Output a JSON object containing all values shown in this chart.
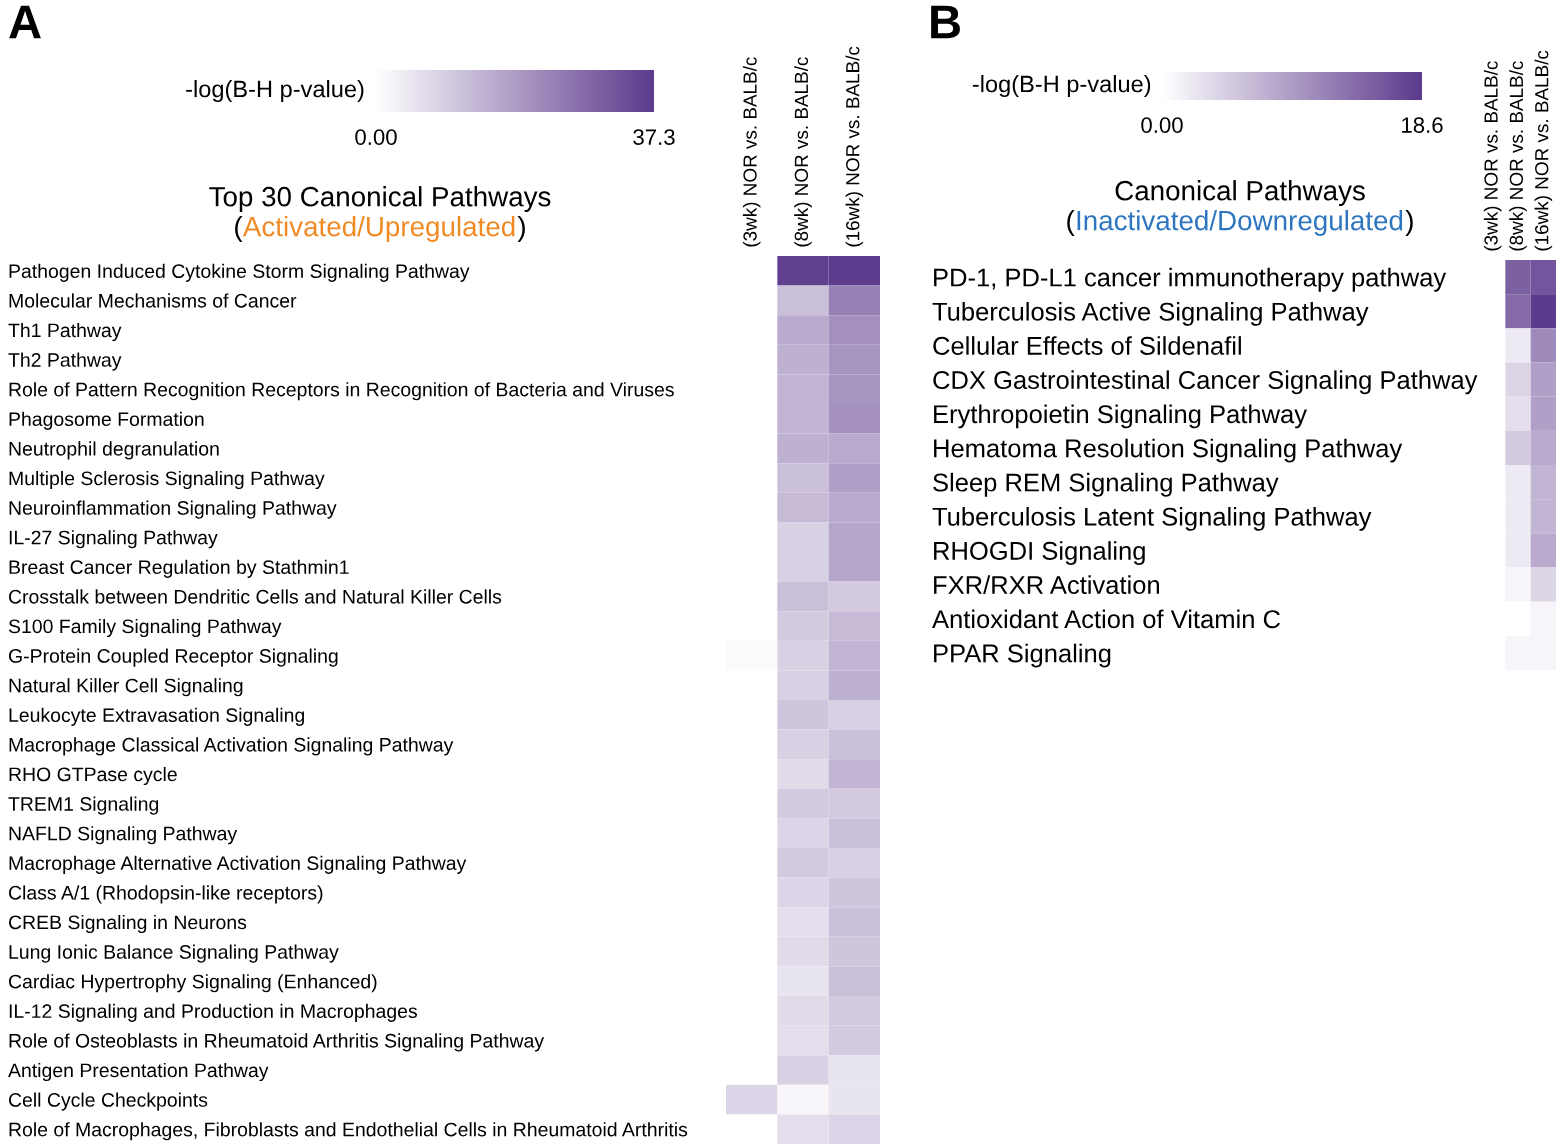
{
  "chart_data": [
    {
      "type": "heatmap",
      "title": "Top 30 Canonical Pathways",
      "subtitle": "(Activated/Upregulated)",
      "clabel": "-log(B-H p-value)",
      "annotations": [
        "A"
      ],
      "categories": [
        "(3wk) NOR vs. BALB/c",
        "(8wk) NOR vs. BALB/c",
        "(16wk) NOR vs. BALB/c"
      ],
      "y_categories": [
        "Pathogen Induced Cytokine Storm Signaling Pathway",
        "Molecular Mechanisms of Cancer",
        "Th1 Pathway",
        "Th2 Pathway",
        "Role of Pattern Recognition Receptors in Recognition of Bacteria and Viruses",
        "Phagosome Formation",
        "Neutrophil degranulation",
        "Multiple Sclerosis Signaling Pathway",
        "Neuroinflammation Signaling Pathway",
        "IL-27 Signaling Pathway",
        "Breast Cancer Regulation by Stathmin1",
        "Crosstalk between Dendritic Cells and Natural Killer Cells",
        "S100 Family Signaling Pathway",
        "G-Protein Coupled Receptor Signaling",
        "Natural Killer Cell Signaling",
        "Leukocyte Extravasation Signaling",
        "Macrophage Classical Activation Signaling Pathway",
        "RHO GTPase cycle",
        "TREM1 Signaling",
        "NAFLD Signaling Pathway",
        "Macrophage Alternative Activation Signaling Pathway",
        "Class A/1 (Rhodopsin-like receptors)",
        "CREB Signaling in Neurons",
        "Lung Ionic Balance Signaling Pathway",
        "Cardiac Hypertrophy Signaling (Enhanced)",
        "IL-12 Signaling and Production in Macrophages",
        "Role of Osteoblasts in Rheumatoid Arthritis Signaling Pathway",
        "Antigen Presentation Pathway",
        "Cell Cycle Checkpoints",
        "Role of Macrophages, Fibroblasts and Endothelial Cells in Rheumatoid Arthritis"
      ],
      "cells": [
        [
          0,
          36,
          37
        ],
        [
          0,
          12,
          24
        ],
        [
          0,
          16,
          21
        ],
        [
          0,
          15,
          20
        ],
        [
          0,
          14,
          20
        ],
        [
          0,
          14,
          21
        ],
        [
          0,
          15,
          16
        ],
        [
          0,
          12,
          18
        ],
        [
          0,
          13,
          16
        ],
        [
          0,
          9,
          17
        ],
        [
          0,
          9,
          17
        ],
        [
          0,
          12,
          10
        ],
        [
          0,
          10,
          13
        ],
        [
          1,
          9,
          14
        ],
        [
          0,
          9,
          15
        ],
        [
          0,
          11,
          9
        ],
        [
          0,
          9,
          12
        ],
        [
          0,
          7,
          14
        ],
        [
          0,
          10,
          10
        ],
        [
          0,
          8,
          12
        ],
        [
          0,
          10,
          9
        ],
        [
          0,
          8,
          11
        ],
        [
          0,
          6,
          12
        ],
        [
          0,
          7,
          11
        ],
        [
          0,
          5,
          12
        ],
        [
          0,
          7,
          10
        ],
        [
          0,
          6,
          10
        ],
        [
          0,
          9,
          5
        ],
        [
          8,
          2,
          5
        ],
        [
          0,
          6,
          8
        ]
      ],
      "clim": [
        0,
        37.3
      ],
      "cticks": [
        {
          "value": 0,
          "label": "0.00"
        },
        37.3
      ]
    },
    {
      "type": "heatmap",
      "title": "Canonical Pathways",
      "subtitle": "(Inactivated/Downregulated)",
      "clabel": "-log(B-H p-value)",
      "annotations": [
        "B"
      ],
      "categories": [
        "(3wk) NOR vs. BALB/c",
        "(8wk) NOR vs. BALB/c",
        "(16wk) NOR vs. BALB/c"
      ],
      "y_categories": [
        "PD-1, PD-L1 cancer immunotherapy pathway",
        "Tuberculosis Active Signaling Pathway",
        "Cellular Effects of Sildenafil",
        "CDX Gastrointestinal Cancer Signaling Pathway",
        "Erythropoietin Signaling Pathway",
        "Hematoma Resolution Signaling Pathway",
        "Sleep REM Signaling Pathway",
        "Tuberculosis Latent Signaling Pathway",
        "RHOGDI Signaling",
        "FXR/RXR Activation",
        "Antioxidant Action of Vitamin C",
        "PPAR Signaling"
      ],
      "cells": [
        [
          0,
          15,
          16
        ],
        [
          0,
          14,
          18.6
        ],
        [
          0,
          2,
          11
        ],
        [
          0,
          4,
          9
        ],
        [
          0,
          3,
          9
        ],
        [
          0,
          5,
          8
        ],
        [
          0,
          2,
          7
        ],
        [
          0,
          2,
          7
        ],
        [
          0,
          2,
          8
        ],
        [
          0,
          1,
          4
        ],
        [
          0,
          0,
          1
        ],
        [
          0,
          1,
          1
        ]
      ],
      "clim": [
        0,
        18.6
      ],
      "cticks": [
        {
          "value": 0,
          "label": "0.00"
        },
        18.6
      ]
    }
  ]
}
